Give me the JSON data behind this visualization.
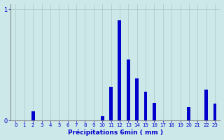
{
  "xlabel": "Précipitations 6min ( mm )",
  "categories": [
    0,
    1,
    2,
    3,
    4,
    5,
    6,
    7,
    8,
    9,
    10,
    11,
    12,
    13,
    14,
    15,
    16,
    17,
    18,
    19,
    20,
    21,
    22,
    23
  ],
  "values": [
    0,
    0,
    0.08,
    0,
    0,
    0,
    0,
    0,
    0,
    0,
    0.04,
    0.3,
    0.9,
    0.55,
    0.38,
    0.26,
    0.16,
    0,
    0,
    0,
    0.12,
    0,
    0.28,
    0.15
  ],
  "bar_color": "#0000cc",
  "bg_color": "#cce8e8",
  "grid_color": "#aac8c8",
  "axis_color": "#888888",
  "text_color": "#0000cc",
  "ylim": [
    0,
    1.05
  ],
  "yticks": [
    0,
    1
  ],
  "bar_width": 0.4,
  "figsize": [
    3.2,
    2.0
  ],
  "dpi": 100
}
